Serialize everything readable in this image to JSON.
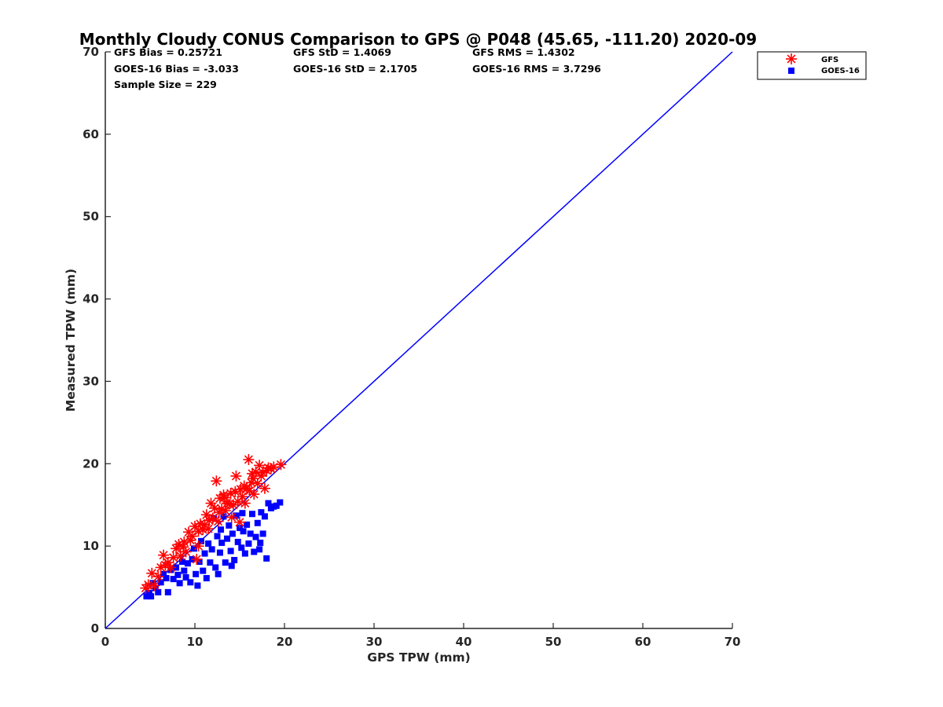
{
  "chart_data": {
    "type": "scatter",
    "title": "Monthly Cloudy CONUS Comparison to GPS @ P048 (45.65, -111.20) 2020-09",
    "xlabel": "GPS TPW (mm)",
    "ylabel": "Measured TPW (mm)",
    "xlim": [
      0,
      70
    ],
    "ylim": [
      0,
      70
    ],
    "xticks": [
      "0",
      "10",
      "20",
      "30",
      "40",
      "50",
      "60",
      "70"
    ],
    "yticks": [
      "0",
      "10",
      "20",
      "30",
      "40",
      "50",
      "60",
      "70"
    ],
    "grid": false,
    "legend_position": "top-right, outside plot",
    "stats": {
      "gfs_bias": "GFS Bias = 0.25721",
      "gfs_std": "GFS StD = 1.4069",
      "gfs_rms": "GFS RMS = 1.4302",
      "goes_bias": "GOES-16 Bias = -3.033",
      "goes_std": "GOES-16 StD = 2.1705",
      "goes_rms": "GOES-16 RMS = 3.7296",
      "sample_size": "Sample Size = 229"
    },
    "reference_line": {
      "x": [
        0,
        70
      ],
      "y": [
        0,
        70
      ],
      "color": "#0000ff"
    },
    "series": [
      {
        "name": "GFS",
        "marker": "asterisk",
        "color": "#ff0000",
        "points": [
          [
            4.5,
            4.9
          ],
          [
            4.8,
            5.3
          ],
          [
            5.2,
            6.7
          ],
          [
            5.5,
            5.2
          ],
          [
            5.9,
            6.3
          ],
          [
            6.2,
            7.4
          ],
          [
            6.5,
            8.9
          ],
          [
            6.7,
            7.7
          ],
          [
            7.0,
            8.0
          ],
          [
            7.3,
            7.4
          ],
          [
            7.6,
            8.6
          ],
          [
            7.9,
            9.7
          ],
          [
            8.2,
            10.2
          ],
          [
            8.4,
            8.8
          ],
          [
            8.7,
            9.9
          ],
          [
            9.0,
            9.3
          ],
          [
            9.3,
            11.7
          ],
          [
            9.5,
            10.7
          ],
          [
            9.7,
            11.2
          ],
          [
            10.0,
            12.4
          ],
          [
            10.2,
            8.4
          ],
          [
            10.4,
            11.8
          ],
          [
            10.6,
            12.7
          ],
          [
            10.9,
            12.0
          ],
          [
            11.1,
            12.6
          ],
          [
            11.3,
            13.8
          ],
          [
            11.5,
            12.1
          ],
          [
            11.8,
            15.2
          ],
          [
            12.0,
            13.4
          ],
          [
            12.2,
            14.6
          ],
          [
            12.4,
            17.9
          ],
          [
            12.6,
            13.0
          ],
          [
            12.8,
            15.8
          ],
          [
            13.0,
            14.5
          ],
          [
            13.2,
            16.2
          ],
          [
            13.4,
            14.3
          ],
          [
            13.6,
            15.2
          ],
          [
            13.8,
            15.1
          ],
          [
            14.0,
            16.4
          ],
          [
            14.1,
            13.5
          ],
          [
            14.3,
            15.0
          ],
          [
            14.5,
            16.6
          ],
          [
            14.6,
            18.5
          ],
          [
            14.8,
            15.4
          ],
          [
            15.0,
            12.9
          ],
          [
            15.1,
            16.9
          ],
          [
            15.3,
            16.0
          ],
          [
            15.5,
            17.3
          ],
          [
            15.6,
            15.2
          ],
          [
            15.8,
            17.0
          ],
          [
            16.0,
            20.5
          ],
          [
            16.1,
            16.7
          ],
          [
            16.3,
            17.7
          ],
          [
            16.5,
            18.2
          ],
          [
            16.6,
            16.3
          ],
          [
            16.8,
            19.0
          ],
          [
            17.0,
            17.6
          ],
          [
            17.2,
            19.8
          ],
          [
            17.4,
            18.5
          ],
          [
            17.6,
            18.9
          ],
          [
            17.8,
            17.0
          ],
          [
            18.0,
            19.2
          ],
          [
            18.2,
            19.5
          ],
          [
            18.5,
            19.4
          ],
          [
            18.8,
            19.6
          ],
          [
            19.6,
            19.9
          ],
          [
            11.6,
            13.1
          ],
          [
            10.4,
            10.0
          ],
          [
            8.8,
            10.5
          ],
          [
            13.3,
            15.9
          ],
          [
            12.7,
            14.1
          ],
          [
            16.4,
            18.8
          ]
        ]
      },
      {
        "name": "GOES-16",
        "marker": "square",
        "color": "#0000ff",
        "points": [
          [
            4.6,
            3.9
          ],
          [
            4.9,
            4.3
          ],
          [
            5.1,
            3.9
          ],
          [
            5.3,
            5.5
          ],
          [
            5.6,
            4.9
          ],
          [
            5.9,
            4.4
          ],
          [
            6.2,
            5.6
          ],
          [
            6.5,
            6.6
          ],
          [
            6.8,
            6.1
          ],
          [
            7.0,
            4.4
          ],
          [
            7.3,
            7.1
          ],
          [
            7.6,
            6.0
          ],
          [
            7.9,
            7.4
          ],
          [
            8.1,
            6.5
          ],
          [
            8.3,
            5.5
          ],
          [
            8.6,
            8.1
          ],
          [
            8.8,
            7.0
          ],
          [
            9.0,
            6.2
          ],
          [
            9.2,
            7.9
          ],
          [
            9.5,
            5.6
          ],
          [
            9.7,
            8.4
          ],
          [
            9.9,
            9.7
          ],
          [
            10.1,
            6.6
          ],
          [
            10.3,
            5.2
          ],
          [
            10.5,
            8.1
          ],
          [
            10.7,
            10.6
          ],
          [
            10.9,
            7.0
          ],
          [
            11.1,
            9.1
          ],
          [
            11.3,
            6.1
          ],
          [
            11.5,
            10.3
          ],
          [
            11.7,
            8.0
          ],
          [
            11.9,
            9.6
          ],
          [
            12.1,
            13.4
          ],
          [
            12.3,
            7.4
          ],
          [
            12.5,
            11.2
          ],
          [
            12.6,
            6.6
          ],
          [
            12.8,
            9.2
          ],
          [
            13.0,
            10.4
          ],
          [
            13.2,
            13.6
          ],
          [
            13.4,
            8.0
          ],
          [
            13.6,
            10.9
          ],
          [
            13.8,
            12.5
          ],
          [
            14.0,
            9.4
          ],
          [
            14.2,
            11.5
          ],
          [
            14.4,
            8.3
          ],
          [
            14.6,
            13.7
          ],
          [
            14.8,
            10.5
          ],
          [
            15.0,
            12.2
          ],
          [
            15.2,
            9.8
          ],
          [
            15.4,
            11.8
          ],
          [
            15.6,
            9.1
          ],
          [
            15.8,
            12.6
          ],
          [
            16.0,
            10.3
          ],
          [
            16.2,
            11.5
          ],
          [
            16.4,
            13.9
          ],
          [
            16.6,
            9.3
          ],
          [
            16.8,
            11.1
          ],
          [
            17.0,
            12.8
          ],
          [
            17.2,
            9.6
          ],
          [
            17.4,
            14.1
          ],
          [
            17.6,
            11.5
          ],
          [
            17.8,
            13.6
          ],
          [
            18.0,
            8.5
          ],
          [
            18.2,
            15.2
          ],
          [
            18.5,
            14.6
          ],
          [
            18.8,
            14.8
          ],
          [
            19.1,
            14.9
          ],
          [
            19.5,
            15.3
          ],
          [
            17.3,
            10.4
          ],
          [
            15.3,
            14.0
          ],
          [
            12.9,
            12.0
          ],
          [
            14.1,
            7.6
          ]
        ]
      }
    ]
  }
}
